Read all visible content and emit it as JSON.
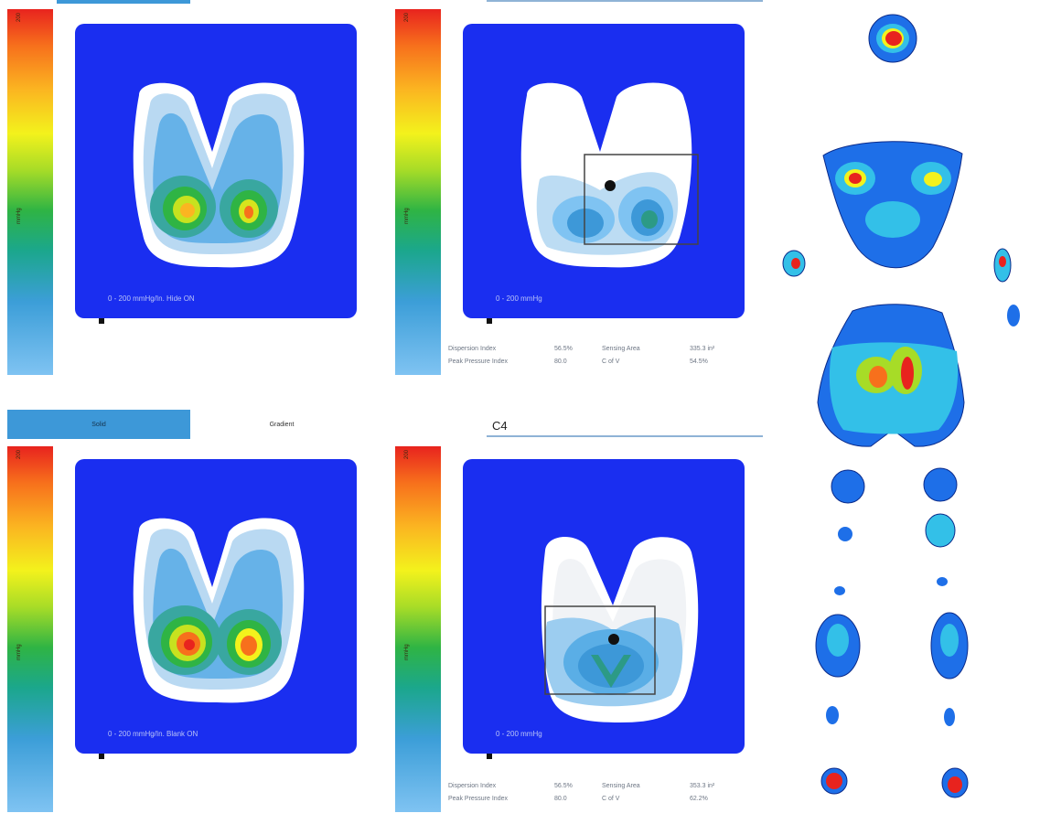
{
  "colors": {
    "map_bg": "#1a2ef0",
    "accent": "#3d98d8"
  },
  "tabs": {
    "solid": "Solid",
    "gradient": "Gradient"
  },
  "section_title": "C4",
  "panels": {
    "top_left": {
      "scale_label": "mmHg",
      "caption": "0 - 200 mmHg/In. Hide ON"
    },
    "top_right": {
      "scale_label": "mmHg",
      "caption": "0 - 200 mmHg",
      "stats": {
        "dispersion_label": "Dispersion Index",
        "dispersion_value": "56.5%",
        "sensing_label": "Sensing Area",
        "sensing_value": "335.3 in²",
        "peak_label": "Peak Pressure Index",
        "peak_value": "80.0",
        "cofv_label": "C of V",
        "cofv_value": "54.5%"
      }
    },
    "bottom_left": {
      "scale_label": "mmHg",
      "caption": "0 - 200 mmHg/In. Blank ON"
    },
    "bottom_right": {
      "scale_label": "mmHg",
      "caption": "0 - 200 mmHg",
      "stats": {
        "dispersion_label": "Dispersion Index",
        "dispersion_value": "56.5%",
        "sensing_label": "Sensing Area",
        "sensing_value": "353.3 in²",
        "peak_label": "Peak Pressure Index",
        "peak_value": "80.0",
        "cofv_label": "C of V",
        "cofv_value": "62.2%"
      }
    }
  },
  "colorbar_max_label": "200"
}
